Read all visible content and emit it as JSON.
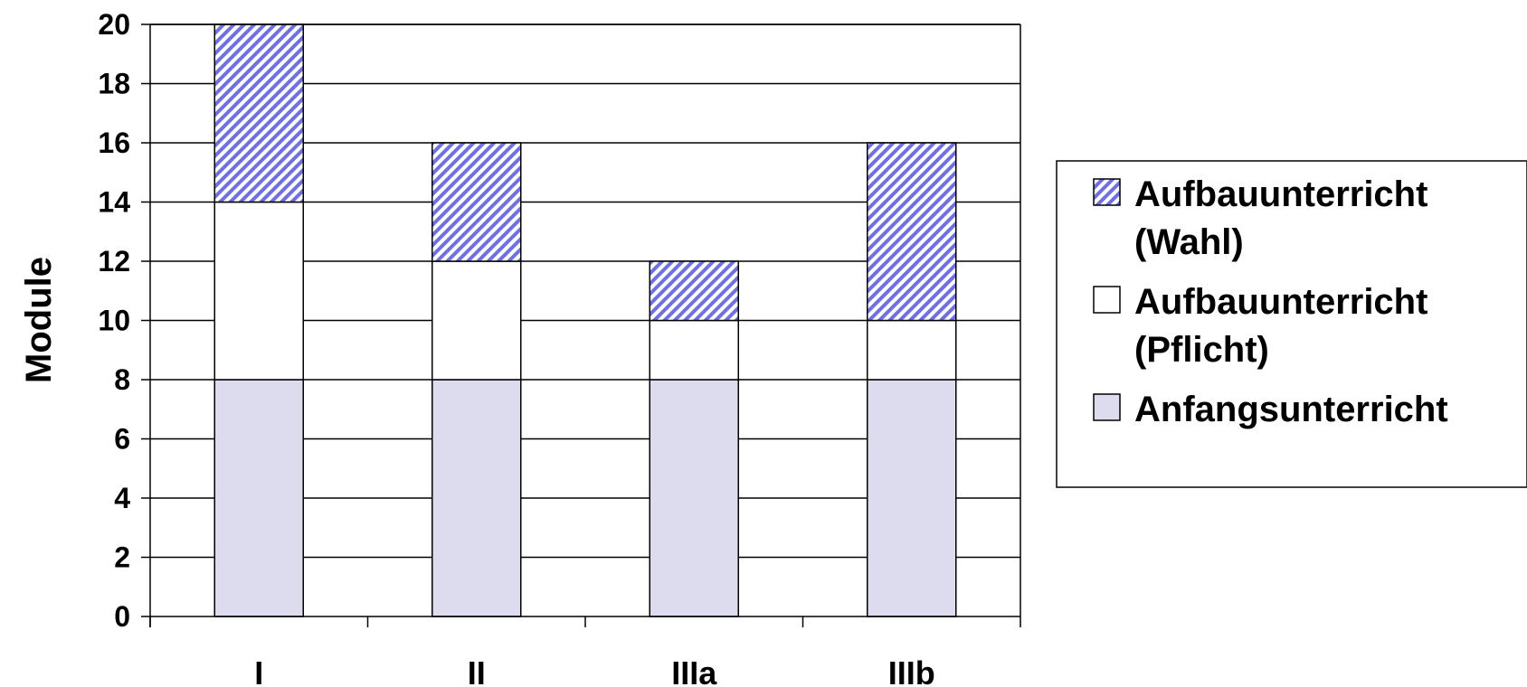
{
  "chart_data": {
    "type": "bar",
    "stacked": true,
    "categories": [
      "I",
      "II",
      "IIIa",
      "IIIb"
    ],
    "series": [
      {
        "name": "Anfangsunterricht",
        "values": [
          8,
          8,
          8,
          8
        ],
        "color": "#dcdcee",
        "pattern": "solid"
      },
      {
        "name": "Aufbauunterricht (Pflicht)",
        "values": [
          6,
          4,
          2,
          2
        ],
        "color": "#ffffff",
        "pattern": "solid"
      },
      {
        "name": "Aufbauunterricht (Wahl)",
        "values": [
          6,
          4,
          2,
          6
        ],
        "color": "#7070e0",
        "pattern": "diagonal-stripes"
      }
    ],
    "legend_order": [
      {
        "series": 2,
        "lines": [
          "Aufbauunterricht",
          "(Wahl)"
        ]
      },
      {
        "series": 1,
        "lines": [
          "Aufbauunterricht",
          "(Pflicht)"
        ]
      },
      {
        "series": 0,
        "lines": [
          "Anfangsunterricht"
        ]
      }
    ],
    "ylabel": "Module",
    "xlabel": "",
    "ylim": [
      0,
      20
    ],
    "yticks": [
      "0",
      "2",
      "4",
      "6",
      "8",
      "10",
      "12",
      "14",
      "16",
      "18",
      "20"
    ],
    "grid": true,
    "legend_position": "right"
  }
}
